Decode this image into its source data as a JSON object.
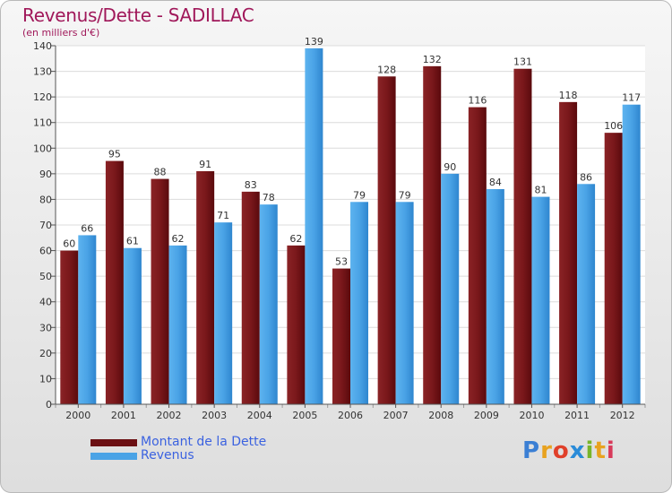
{
  "header": {
    "title": "Revenus/Dette - SADILLAC",
    "subtitle": "(en milliers d'€)"
  },
  "logo": {
    "letters": [
      "P",
      "r",
      "o",
      "x",
      "i",
      "t",
      "i"
    ]
  },
  "colors": {
    "dette": "#6b0f12",
    "revenus": "#4aa3e6",
    "title": "#a0185a",
    "legend_text": "#3b62e0"
  },
  "legend": [
    {
      "label": "Montant de la Dette",
      "color": "#6b0f12"
    },
    {
      "label": "Revenus",
      "color": "#4aa3e6"
    }
  ],
  "chart_data": {
    "type": "bar",
    "title": "Revenus/Dette - SADILLAC",
    "subtitle": "(en milliers d'€)",
    "categories": [
      "2000",
      "2001",
      "2002",
      "2003",
      "2004",
      "2005",
      "2006",
      "2007",
      "2008",
      "2009",
      "2010",
      "2011",
      "2012"
    ],
    "series": [
      {
        "name": "Montant de la Dette",
        "values": [
          60,
          95,
          88,
          91,
          83,
          62,
          53,
          128,
          132,
          116,
          131,
          118,
          106
        ]
      },
      {
        "name": "Revenus",
        "values": [
          66,
          61,
          62,
          71,
          78,
          139,
          79,
          79,
          90,
          84,
          81,
          86,
          117
        ]
      }
    ],
    "ylim": [
      0,
      140
    ],
    "yticks": [
      0,
      10,
      20,
      30,
      40,
      50,
      60,
      70,
      80,
      90,
      100,
      110,
      120,
      130,
      140
    ],
    "grid": true,
    "legend_position": "bottom-left"
  }
}
